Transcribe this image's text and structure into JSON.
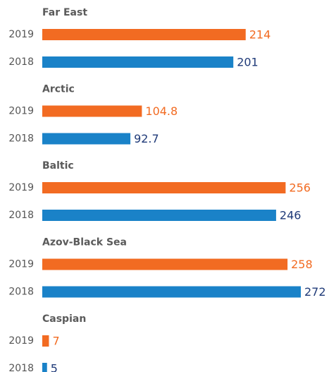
{
  "chart_data": {
    "type": "bar",
    "categories": [
      "Far East",
      "Arctic",
      "Baltic",
      "Azov-Black Sea",
      "Caspian"
    ],
    "series": [
      {
        "name": "2019",
        "color": "#f26b22",
        "label_color": "#f26b22",
        "values": [
          214,
          104.8,
          256,
          258,
          7
        ]
      },
      {
        "name": "2018",
        "color": "#1a82c8",
        "label_color": "#1f3a78",
        "values": [
          201,
          92.7,
          246,
          272,
          5
        ]
      }
    ]
  }
}
